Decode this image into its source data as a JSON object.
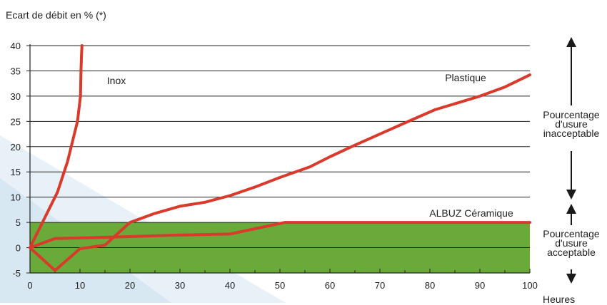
{
  "chart_data": {
    "type": "line",
    "ylabel": "Ecart de débit en % (*)",
    "xlabel": "Heures",
    "xlim": [
      0,
      100
    ],
    "ylim": [
      -5,
      40
    ],
    "xticks": [
      "0",
      "10",
      "20",
      "30",
      "40",
      "50",
      "60",
      "70",
      "80",
      "90",
      "100"
    ],
    "yticks": [
      "-5",
      "0",
      "5",
      "10",
      "15",
      "20",
      "25",
      "30",
      "35",
      "40"
    ],
    "grid": true,
    "acceptable_band": {
      "from": -5,
      "to": 5,
      "color": "#6aaa3a"
    },
    "series": [
      {
        "name": "Inox",
        "color": "#d93a2b",
        "x": [
          0,
          1.5,
          3.5,
          5.5,
          7.5,
          9.5,
          10.1,
          10.2,
          10.3,
          10.4
        ],
        "y": [
          0,
          3,
          7,
          11,
          17,
          25,
          30,
          35,
          38,
          40
        ]
      },
      {
        "name": "Plastique",
        "color": "#d93a2b",
        "x": [
          0,
          5,
          10,
          15,
          20,
          25,
          30,
          35,
          40,
          45,
          50,
          56,
          60,
          65,
          70,
          75,
          81,
          86,
          90,
          95,
          100
        ],
        "y": [
          0,
          -4.5,
          -0.2,
          0.5,
          5,
          6.8,
          8.2,
          9,
          10.3,
          12,
          13.9,
          16,
          18,
          20.3,
          22.5,
          24.7,
          27.3,
          28.8,
          30,
          31.8,
          34.2
        ]
      },
      {
        "name": "ALBUZ Céramique",
        "color": "#d93a2b",
        "x": [
          0,
          5,
          20,
          30,
          40,
          51,
          60,
          70,
          80,
          90,
          100
        ],
        "y": [
          0,
          1.8,
          2.2,
          2.5,
          2.7,
          5,
          5,
          5,
          5,
          5,
          5
        ]
      }
    ],
    "annotations": {
      "unacceptable": [
        "Pourcentage",
        "d'usure",
        "inacceptable"
      ],
      "acceptable": [
        "Pourcentage",
        "d'usure",
        "acceptable"
      ]
    }
  },
  "colors": {
    "background_wedge": "#e4eef6",
    "grid": "#222222",
    "band": "#6aaa3a",
    "series": "#d93a2b",
    "arrows": "#1a1a1a"
  }
}
